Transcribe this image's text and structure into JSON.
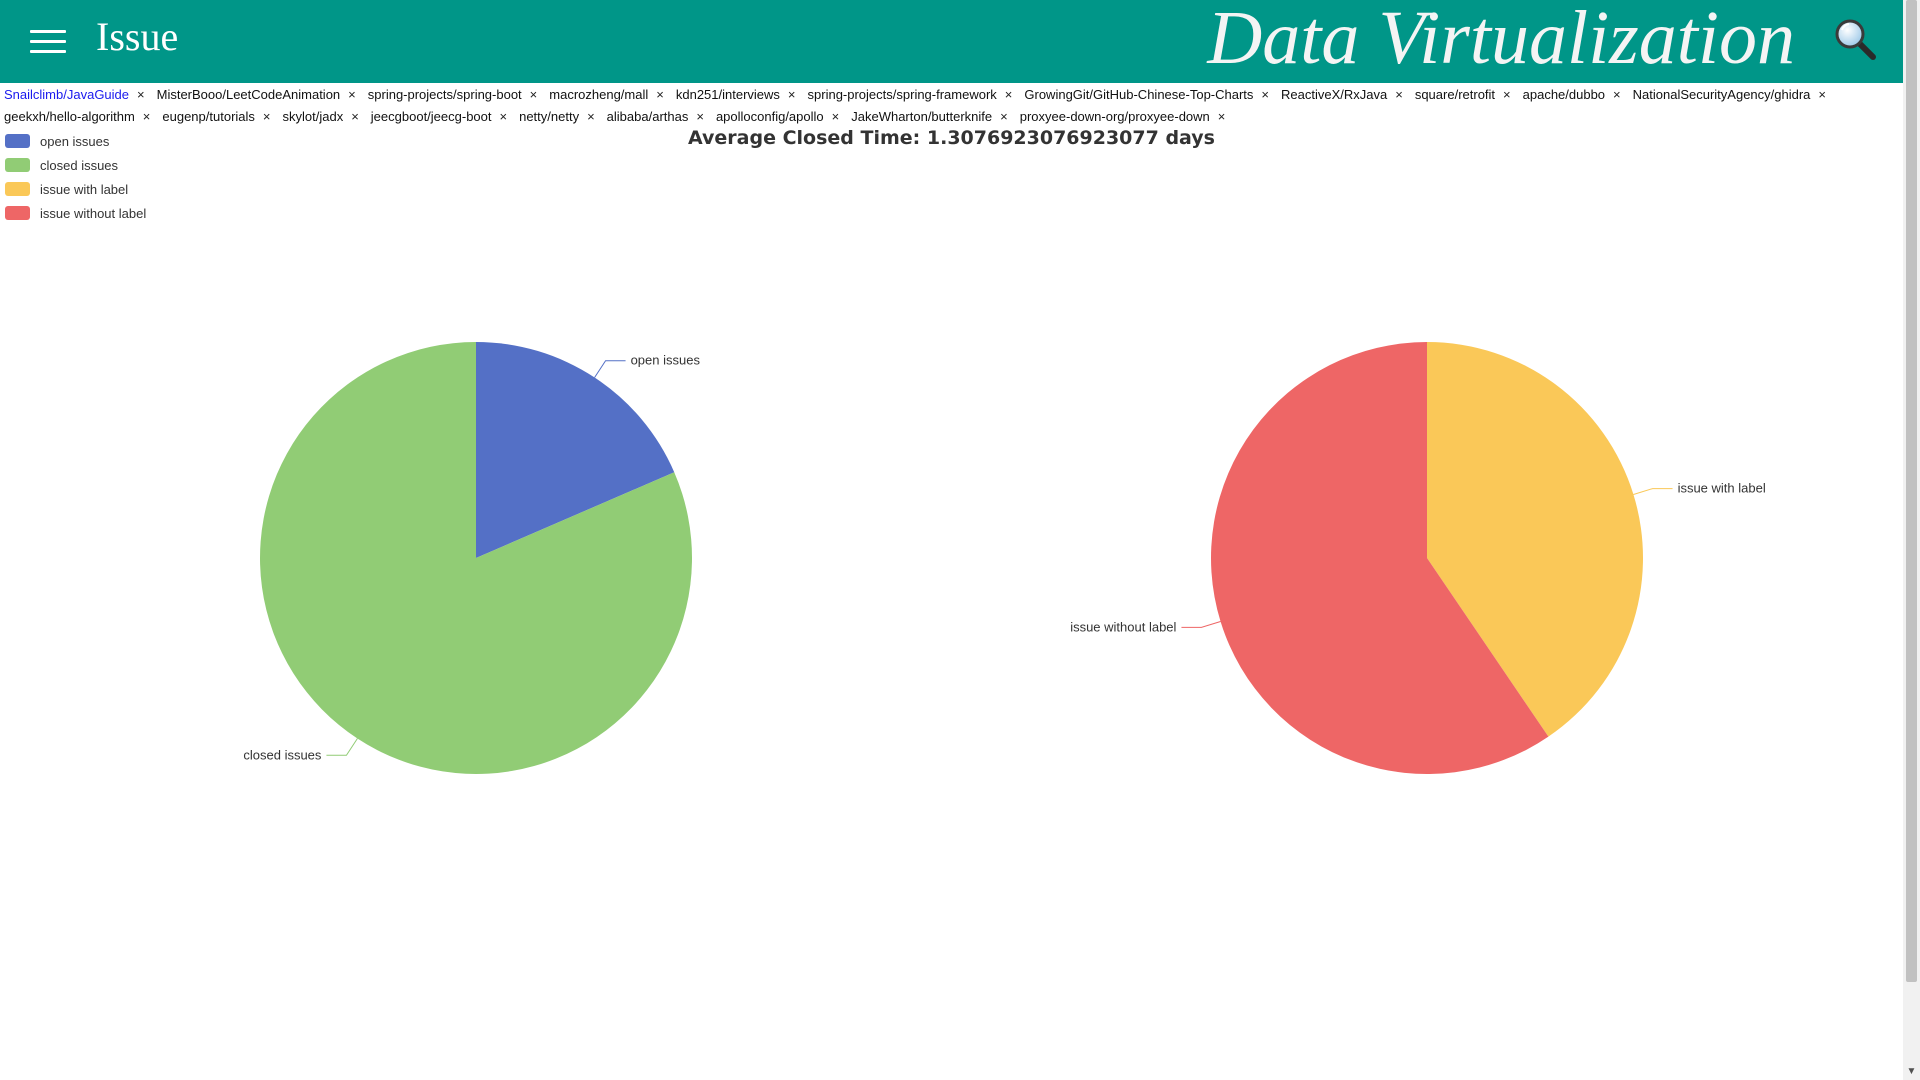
{
  "header": {
    "title": "Issue",
    "brand": "Data Virtualization",
    "menu_icon": "hamburger-menu-icon",
    "search_icon": "magnifier-icon",
    "background": "#009688"
  },
  "repo_tabs": [
    {
      "label": "Snailclimb/JavaGuide",
      "active": true
    },
    {
      "label": "MisterBooo/LeetCodeAnimation"
    },
    {
      "label": "spring-projects/spring-boot"
    },
    {
      "label": "macrozheng/mall"
    },
    {
      "label": "kdn251/interviews"
    },
    {
      "label": "spring-projects/spring-framework"
    },
    {
      "label": "GrowingGit/GitHub-Chinese-Top-Charts"
    },
    {
      "label": "ReactiveX/RxJava"
    },
    {
      "label": "square/retrofit"
    },
    {
      "label": "apache/dubbo"
    },
    {
      "label": "NationalSecurityAgency/ghidra"
    },
    {
      "label": "geekxh/hello-algorithm"
    },
    {
      "label": "eugenp/tutorials"
    },
    {
      "label": "skylot/jadx"
    },
    {
      "label": "jeecgboot/jeecg-boot"
    },
    {
      "label": "netty/netty"
    },
    {
      "label": "alibaba/arthas"
    },
    {
      "label": "apolloconfig/apollo"
    },
    {
      "label": "JakeWharton/butterknife"
    },
    {
      "label": "proxyee-down-org/proxyee-down"
    }
  ],
  "tab_close_glyph": "×",
  "summary": {
    "avg_closed_time": "Average Closed Time: 1.3076923076923077 days"
  },
  "legend": [
    {
      "label": "open issues",
      "color": "#5470c6"
    },
    {
      "label": "closed issues",
      "color": "#91cc75"
    },
    {
      "label": "issue with label",
      "color": "#fac858"
    },
    {
      "label": "issue without label",
      "color": "#ee6666"
    }
  ],
  "chart_data": [
    {
      "type": "pie",
      "slices": [
        {
          "label": "open issues",
          "value": 18.5,
          "color": "#5470c6"
        },
        {
          "label": "closed issues",
          "value": 81.5,
          "color": "#91cc75"
        }
      ]
    },
    {
      "type": "pie",
      "slices": [
        {
          "label": "issue with label",
          "value": 40.5,
          "color": "#fac858"
        },
        {
          "label": "issue without label",
          "value": 59.5,
          "color": "#ee6666"
        }
      ]
    }
  ]
}
